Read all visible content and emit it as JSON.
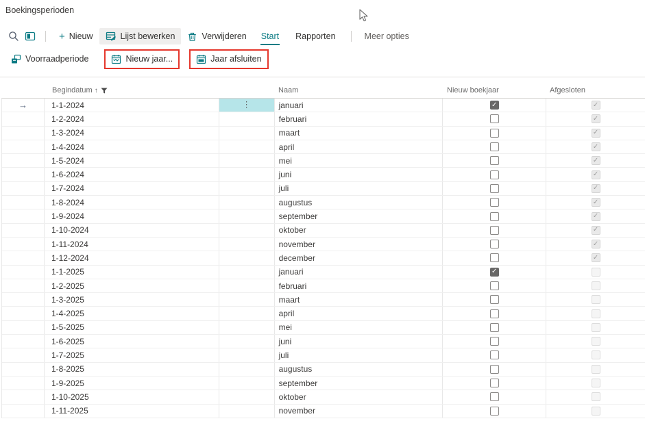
{
  "title": "Boekingsperioden",
  "toolbar": {
    "new_label": "Nieuw",
    "edit_list_label": "Lijst bewerken",
    "delete_label": "Verwijderen",
    "tab_start": "Start",
    "tab_reports": "Rapporten",
    "more_options": "Meer opties"
  },
  "actions": {
    "inventory_period": "Voorraadperiode",
    "new_year": "Nieuw jaar...",
    "close_year": "Jaar afsluiten"
  },
  "table": {
    "headers": {
      "start_date": "Begindatum",
      "name": "Naam",
      "new_fiscal_year": "Nieuw boekjaar",
      "closed": "Afgesloten"
    },
    "sort": {
      "column": "Begindatum",
      "direction": "ascending",
      "filtered": true
    },
    "rows": [
      {
        "date": "1-1-2024",
        "name": "januari",
        "new_year": true,
        "closed": true,
        "selected": true
      },
      {
        "date": "1-2-2024",
        "name": "februari",
        "new_year": false,
        "closed": true,
        "selected": false
      },
      {
        "date": "1-3-2024",
        "name": "maart",
        "new_year": false,
        "closed": true,
        "selected": false
      },
      {
        "date": "1-4-2024",
        "name": "april",
        "new_year": false,
        "closed": true,
        "selected": false
      },
      {
        "date": "1-5-2024",
        "name": "mei",
        "new_year": false,
        "closed": true,
        "selected": false
      },
      {
        "date": "1-6-2024",
        "name": "juni",
        "new_year": false,
        "closed": true,
        "selected": false
      },
      {
        "date": "1-7-2024",
        "name": "juli",
        "new_year": false,
        "closed": true,
        "selected": false
      },
      {
        "date": "1-8-2024",
        "name": "augustus",
        "new_year": false,
        "closed": true,
        "selected": false
      },
      {
        "date": "1-9-2024",
        "name": "september",
        "new_year": false,
        "closed": true,
        "selected": false
      },
      {
        "date": "1-10-2024",
        "name": "oktober",
        "new_year": false,
        "closed": true,
        "selected": false
      },
      {
        "date": "1-11-2024",
        "name": "november",
        "new_year": false,
        "closed": true,
        "selected": false
      },
      {
        "date": "1-12-2024",
        "name": "december",
        "new_year": false,
        "closed": true,
        "selected": false
      },
      {
        "date": "1-1-2025",
        "name": "januari",
        "new_year": true,
        "closed": false,
        "selected": false
      },
      {
        "date": "1-2-2025",
        "name": "februari",
        "new_year": false,
        "closed": false,
        "selected": false
      },
      {
        "date": "1-3-2025",
        "name": "maart",
        "new_year": false,
        "closed": false,
        "selected": false
      },
      {
        "date": "1-4-2025",
        "name": "april",
        "new_year": false,
        "closed": false,
        "selected": false
      },
      {
        "date": "1-5-2025",
        "name": "mei",
        "new_year": false,
        "closed": false,
        "selected": false
      },
      {
        "date": "1-6-2025",
        "name": "juni",
        "new_year": false,
        "closed": false,
        "selected": false
      },
      {
        "date": "1-7-2025",
        "name": "juli",
        "new_year": false,
        "closed": false,
        "selected": false
      },
      {
        "date": "1-8-2025",
        "name": "augustus",
        "new_year": false,
        "closed": false,
        "selected": false
      },
      {
        "date": "1-9-2025",
        "name": "september",
        "new_year": false,
        "closed": false,
        "selected": false
      },
      {
        "date": "1-10-2025",
        "name": "oktober",
        "new_year": false,
        "closed": false,
        "selected": false
      },
      {
        "date": "1-11-2025",
        "name": "november",
        "new_year": false,
        "closed": false,
        "selected": false
      }
    ]
  },
  "colors": {
    "accent": "#0d7c85",
    "focus_cell": "#b6e5e9",
    "annotation": "#e5372c",
    "checkbox_checked": "#696867"
  }
}
